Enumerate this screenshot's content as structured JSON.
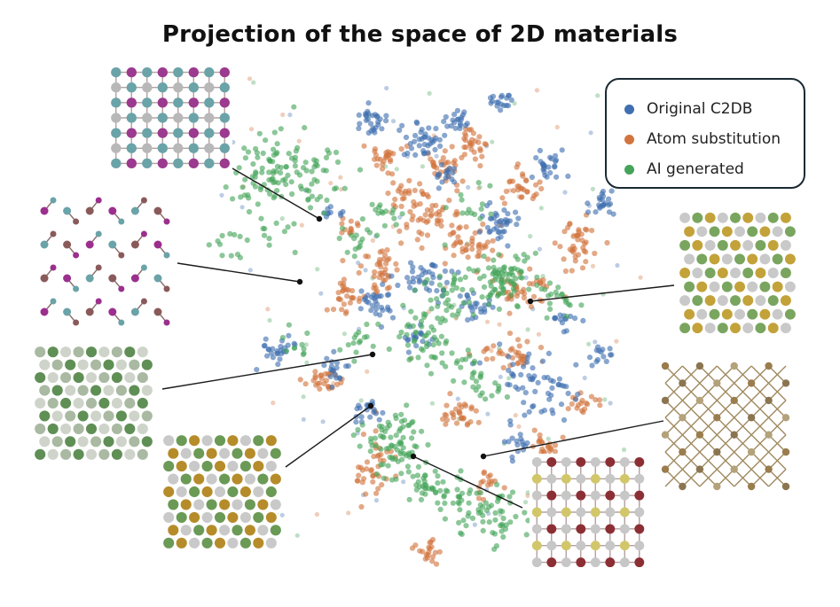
{
  "chart_data": {
    "type": "scatter",
    "title": "Projection of the space of 2D materials",
    "xlabel": "",
    "ylabel": "",
    "grid": false,
    "axes_visible": false,
    "legend_position": "top-right",
    "series": [
      {
        "name": "Original C2DB",
        "color": "#3f6fb0",
        "clusters": [
          [
            0.36,
            0.12,
            0.015,
            0.02,
            28
          ],
          [
            0.48,
            0.17,
            0.018,
            0.02,
            38
          ],
          [
            0.56,
            0.12,
            0.012,
            0.015,
            20
          ],
          [
            0.66,
            0.06,
            0.012,
            0.012,
            18
          ],
          [
            0.78,
            0.25,
            0.016,
            0.016,
            26
          ],
          [
            0.9,
            0.34,
            0.014,
            0.016,
            22
          ],
          [
            0.67,
            0.4,
            0.02,
            0.02,
            36
          ],
          [
            0.49,
            0.55,
            0.03,
            0.02,
            40
          ],
          [
            0.37,
            0.62,
            0.02,
            0.02,
            30
          ],
          [
            0.14,
            0.75,
            0.02,
            0.018,
            26
          ],
          [
            0.28,
            0.8,
            0.014,
            0.014,
            18
          ],
          [
            0.74,
            0.84,
            0.04,
            0.04,
            60
          ],
          [
            0.9,
            0.76,
            0.012,
            0.012,
            14
          ],
          [
            0.36,
            0.92,
            0.016,
            0.015,
            20
          ],
          [
            0.82,
            0.67,
            0.012,
            0.012,
            14
          ],
          [
            0.54,
            0.27,
            0.012,
            0.012,
            16
          ],
          [
            0.6,
            0.62,
            0.02,
            0.02,
            24
          ],
          [
            0.46,
            0.72,
            0.015,
            0.015,
            18
          ],
          [
            0.28,
            0.37,
            0.01,
            0.01,
            10
          ],
          [
            0.7,
            1.0,
            0.016,
            0.016,
            16
          ]
        ]
      },
      {
        "name": "Atom substitution",
        "color": "#d2743d",
        "clusters": [
          [
            0.39,
            0.22,
            0.02,
            0.018,
            26
          ],
          [
            0.53,
            0.24,
            0.02,
            0.02,
            28
          ],
          [
            0.6,
            0.18,
            0.018,
            0.02,
            28
          ],
          [
            0.5,
            0.38,
            0.03,
            0.03,
            50
          ],
          [
            0.6,
            0.46,
            0.03,
            0.02,
            44
          ],
          [
            0.72,
            0.3,
            0.02,
            0.02,
            30
          ],
          [
            0.84,
            0.46,
            0.02,
            0.03,
            40
          ],
          [
            0.39,
            0.52,
            0.02,
            0.03,
            40
          ],
          [
            0.3,
            0.6,
            0.02,
            0.02,
            28
          ],
          [
            0.25,
            0.83,
            0.02,
            0.02,
            28
          ],
          [
            0.37,
            1.07,
            0.02,
            0.04,
            40
          ],
          [
            0.57,
            0.92,
            0.02,
            0.02,
            30
          ],
          [
            0.68,
            0.76,
            0.03,
            0.02,
            34
          ],
          [
            0.77,
            1.02,
            0.016,
            0.016,
            24
          ],
          [
            0.86,
            0.9,
            0.014,
            0.014,
            18
          ],
          [
            0.5,
            1.3,
            0.014,
            0.016,
            20
          ],
          [
            0.72,
            0.58,
            0.03,
            0.02,
            40
          ],
          [
            0.44,
            0.32,
            0.014,
            0.014,
            18
          ],
          [
            0.31,
            0.42,
            0.012,
            0.012,
            12
          ],
          [
            0.63,
            1.12,
            0.014,
            0.014,
            16
          ]
        ]
      },
      {
        "name": "AI generated",
        "color": "#45a45a",
        "clusters": [
          [
            0.16,
            0.27,
            0.05,
            0.05,
            120
          ],
          [
            0.67,
            0.56,
            0.035,
            0.03,
            80
          ],
          [
            0.47,
            0.7,
            0.03,
            0.03,
            40
          ],
          [
            0.42,
            1.0,
            0.04,
            0.04,
            80
          ],
          [
            0.52,
            1.13,
            0.03,
            0.02,
            40
          ],
          [
            0.64,
            1.2,
            0.04,
            0.03,
            70
          ],
          [
            0.56,
            0.6,
            0.04,
            0.04,
            40
          ],
          [
            0.33,
            0.44,
            0.02,
            0.02,
            16
          ],
          [
            0.4,
            0.37,
            0.016,
            0.016,
            14
          ],
          [
            0.6,
            0.34,
            0.02,
            0.02,
            14
          ],
          [
            0.8,
            0.62,
            0.02,
            0.02,
            18
          ],
          [
            0.62,
            0.85,
            0.02,
            0.02,
            20
          ],
          [
            0.33,
            0.72,
            0.015,
            0.015,
            14
          ],
          [
            0.08,
            0.45,
            0.05,
            0.03,
            20
          ],
          [
            0.55,
            0.78,
            0.03,
            0.02,
            20
          ],
          [
            0.2,
            0.73,
            0.02,
            0.02,
            10
          ]
        ]
      }
    ],
    "insets": [
      {
        "structure": "square lattice, purple/teal atoms",
        "target": [
          0.43,
          0.3
        ]
      },
      {
        "structure": "puckered chains, purple/teal/brown atoms",
        "target": [
          0.36,
          0.63
        ]
      },
      {
        "structure": "hexagonal, green/grey atoms",
        "target": [
          0.48,
          0.89
        ]
      },
      {
        "structure": "hexagonal, grey/green/gold/blue atoms",
        "target": [
          0.62,
          0.47
        ]
      },
      {
        "structure": "hexagonal, grey/green/gold atoms",
        "target": [
          0.67,
          0.6
        ]
      },
      {
        "structure": "rhombic, brown/olive atoms",
        "target": [
          0.63,
          1.2
        ]
      },
      {
        "structure": "square, grey/maroon/yellow atoms",
        "target": [
          0.52,
          1.22
        ]
      }
    ]
  },
  "colors": {
    "original": "#3f6fb0",
    "substitution": "#d2743d",
    "ai": "#45a45a",
    "legend_border": "#1a2a33"
  },
  "legend": {
    "items": [
      {
        "label": "Original C2DB",
        "color": "#3f6fb0"
      },
      {
        "label": "Atom substitution",
        "color": "#d2743d"
      },
      {
        "label": "AI generated",
        "color": "#45a45a"
      }
    ]
  }
}
